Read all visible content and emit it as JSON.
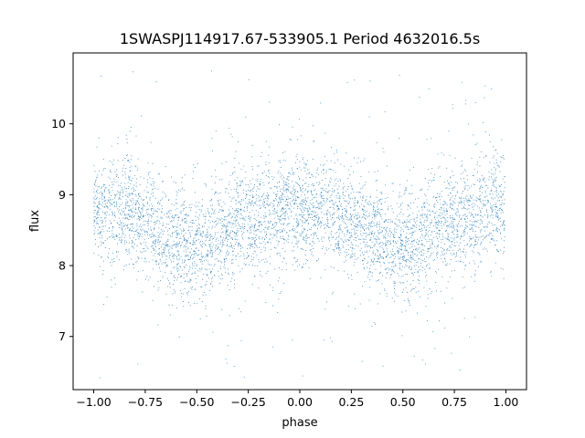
{
  "chart_data": {
    "type": "scatter",
    "title": "1SWASPJ114917.67-533905.1 Period 4632016.5s",
    "xlabel": "phase",
    "ylabel": "flux",
    "xlim": [
      -1.1,
      1.1
    ],
    "ylim": [
      6.25,
      11.0
    ],
    "x_ticks": [
      -1.0,
      -0.75,
      -0.5,
      -0.25,
      0.0,
      0.25,
      0.5,
      0.75,
      1.0
    ],
    "x_tick_labels": [
      "−1.00",
      "−0.75",
      "−0.50",
      "−0.25",
      "0.00",
      "0.25",
      "0.50",
      "0.75",
      "1.00"
    ],
    "y_ticks": [
      7,
      8,
      9,
      10
    ],
    "y_tick_labels": [
      "7",
      "8",
      "9",
      "10"
    ],
    "grid": false,
    "marker_color": "#1f77b4",
    "light_curve_profile": {
      "phase": [
        -1.0,
        -0.9,
        -0.85,
        -0.75,
        -0.65,
        -0.55,
        -0.45,
        -0.35,
        -0.25,
        -0.15,
        -0.05,
        0.0,
        0.1,
        0.15,
        0.25,
        0.35,
        0.45,
        0.55,
        0.65,
        0.75,
        0.85,
        0.95,
        1.0
      ],
      "flux": [
        8.75,
        8.8,
        8.8,
        8.65,
        8.4,
        8.3,
        8.3,
        8.5,
        8.65,
        8.7,
        8.85,
        8.75,
        8.8,
        8.8,
        8.65,
        8.4,
        8.3,
        8.3,
        8.5,
        8.65,
        8.7,
        8.85,
        8.75
      ]
    },
    "scatter_spread": 0.38,
    "outlier_range": [
      6.4,
      10.8
    ]
  }
}
